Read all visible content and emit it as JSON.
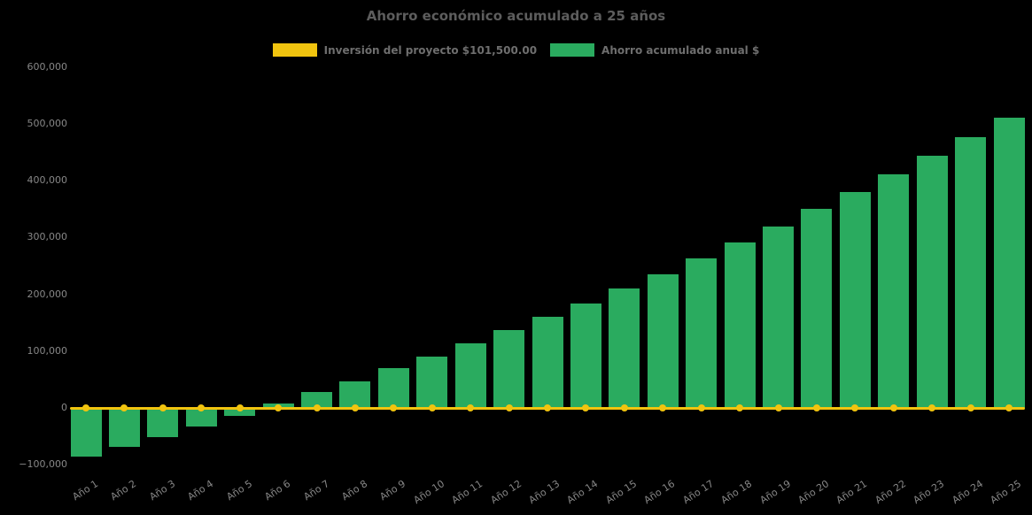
{
  "title": "Ahorro económico acumulado a 25 años",
  "legend": {
    "investment_label": "Inversión del proyecto $101,500.00",
    "savings_label": "Ahorro acumulado anual $"
  },
  "colors": {
    "background": "#000000",
    "bar_green": "#2aab5f",
    "line_yellow": "#f1c40f",
    "title_text": "#5d5d5d",
    "legend_text": "#6e6e6e",
    "tick_text": "#878787"
  },
  "chart_data": {
    "type": "bar",
    "title": "Ahorro económico acumulado a 25 años",
    "categories": [
      "Año 1",
      "Año 2",
      "Año 3",
      "Año 4",
      "Año 5",
      "Año 6",
      "Año 7",
      "Año 8",
      "Año 9",
      "Año 10",
      "Año 11",
      "Año 12",
      "Año 13",
      "Año 14",
      "Año 15",
      "Año 16",
      "Año 17",
      "Año 18",
      "Año 19",
      "Año 20",
      "Año 21",
      "Año 22",
      "Año 23",
      "Año 24",
      "Año 25"
    ],
    "series": [
      {
        "name": "Inversión del proyecto $101,500.00",
        "type": "line",
        "color": "#f1c40f",
        "values": [
          0,
          0,
          0,
          0,
          0,
          0,
          0,
          0,
          0,
          0,
          0,
          0,
          0,
          0,
          0,
          0,
          0,
          0,
          0,
          0,
          0,
          0,
          0,
          0,
          0
        ]
      },
      {
        "name": "Ahorro acumulado anual $",
        "type": "bar",
        "color": "#2aab5f",
        "values": [
          -85000,
          -68000,
          -51000,
          -32000,
          -14000,
          8000,
          28000,
          47000,
          70000,
          91000,
          114000,
          137000,
          160000,
          184000,
          210000,
          235000,
          263000,
          292000,
          320000,
          350000,
          380000,
          411000,
          444000,
          477000,
          511000
        ]
      }
    ],
    "investment_amount": 101500.0,
    "ylim": [
      -100000,
      600000
    ],
    "ytick_values": [
      600000,
      500000,
      400000,
      300000,
      200000,
      100000,
      0,
      -100000
    ],
    "ytick_labels": [
      "600,000",
      "500,000",
      "400,000",
      "300,000",
      "200,000",
      "100,000",
      "0",
      "−100,000"
    ],
    "grid": false,
    "legend_position": "top-center",
    "xlabel": "",
    "ylabel": ""
  }
}
